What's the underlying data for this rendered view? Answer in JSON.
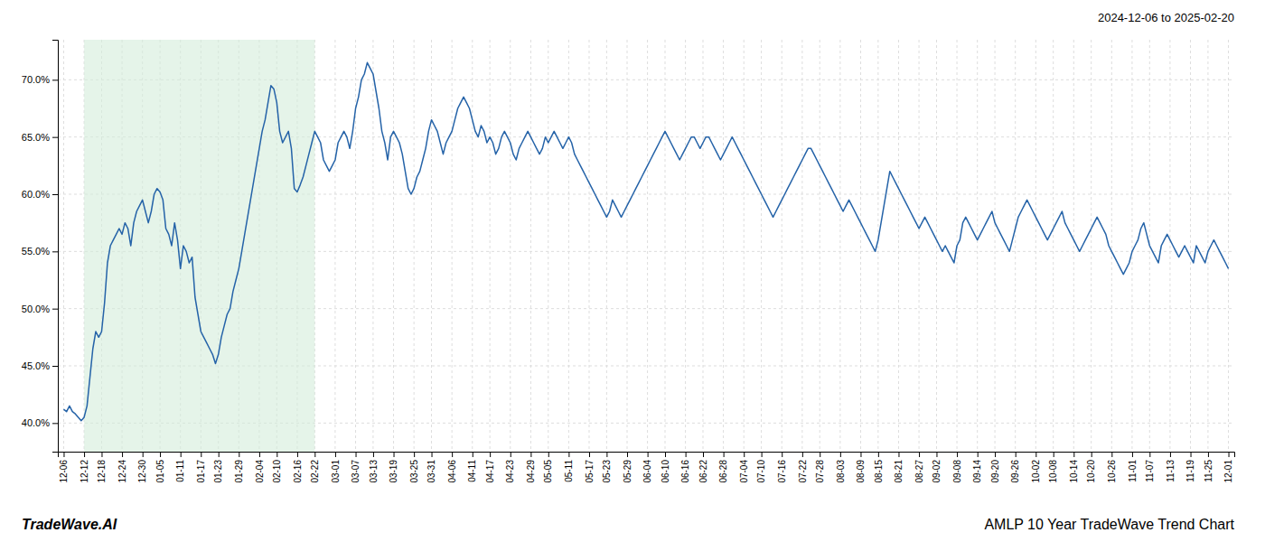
{
  "chart_data": {
    "type": "line",
    "title": "AMLP 10 Year TradeWave Trend Chart",
    "subtitle": "2024-12-06 to 2025-02-20",
    "annotations": [
      "TradeWave.AI"
    ],
    "color": "#2563a8",
    "grid": true,
    "shaded_range": {
      "start": "12-12",
      "end": "02-22",
      "color": "#d4edda"
    },
    "ylim": [
      37.5,
      73.5
    ],
    "yticks": [
      {
        "value": 40.0,
        "label": "40.0%"
      },
      {
        "value": 45.0,
        "label": "45.0%"
      },
      {
        "value": 50.0,
        "label": "50.0%"
      },
      {
        "value": 55.0,
        "label": "55.0%"
      },
      {
        "value": 60.0,
        "label": "60.0%"
      },
      {
        "value": 65.0,
        "label": "65.0%"
      },
      {
        "value": 70.0,
        "label": "70.0%"
      }
    ],
    "categories": [
      "12-06",
      null,
      null,
      null,
      null,
      null,
      null,
      "12-12",
      null,
      null,
      null,
      null,
      null,
      "12-18",
      null,
      null,
      null,
      null,
      null,
      null,
      "12-24",
      null,
      null,
      null,
      null,
      null,
      null,
      "12-30",
      null,
      null,
      null,
      null,
      null,
      "01-05",
      null,
      null,
      null,
      null,
      null,
      null,
      "01-11",
      null,
      null,
      null,
      null,
      null,
      null,
      "01-17",
      null,
      null,
      null,
      null,
      null,
      "01-23",
      null,
      null,
      null,
      null,
      null,
      null,
      "01-29",
      null,
      null,
      null,
      null,
      null,
      null,
      "02-04",
      null,
      null,
      null,
      null,
      null,
      "02-10",
      null,
      null,
      null,
      null,
      null,
      null,
      "02-16",
      null,
      null,
      null,
      null,
      null,
      "02-22",
      null,
      null,
      null,
      null,
      null,
      null,
      "03-01",
      null,
      null,
      null,
      null,
      null,
      null,
      "03-07",
      null,
      null,
      null,
      null,
      null,
      "03-13",
      null,
      null,
      null,
      null,
      null,
      null,
      "03-19",
      null,
      null,
      null,
      null,
      null,
      null,
      "03-25",
      null,
      null,
      null,
      null,
      null,
      "03-31",
      null,
      null,
      null,
      null,
      null,
      null,
      "04-06",
      null,
      null,
      null,
      null,
      null,
      null,
      "04-11",
      null,
      null,
      null,
      null,
      null,
      "04-17",
      null,
      null,
      null,
      null,
      null,
      null,
      "04-23",
      null,
      null,
      null,
      null,
      null,
      null,
      "04-29",
      null,
      null,
      null,
      null,
      null,
      "05-05",
      null,
      null,
      null,
      null,
      null,
      null,
      "05-11",
      null,
      null,
      null,
      null,
      null,
      null,
      "05-17",
      null,
      null,
      null,
      null,
      null,
      "05-23",
      null,
      null,
      null,
      null,
      null,
      null,
      "05-29",
      null,
      null,
      null,
      null,
      null,
      null,
      "06-04",
      null,
      null,
      null,
      null,
      null,
      "06-10",
      null,
      null,
      null,
      null,
      null,
      null,
      "06-16",
      null,
      null,
      null,
      null,
      null,
      "06-22",
      null,
      null,
      null,
      null,
      null,
      null,
      "06-28",
      null,
      null,
      null,
      null,
      null,
      null,
      "07-04",
      null,
      null,
      null,
      null,
      null,
      "07-10",
      null,
      null,
      null,
      null,
      null,
      null,
      "07-16",
      null,
      null,
      null,
      null,
      null,
      null,
      "07-22",
      null,
      null,
      null,
      null,
      null,
      "07-28",
      null,
      null,
      null,
      null,
      null,
      null,
      "08-03",
      null,
      null,
      null,
      null,
      null,
      null,
      "08-09",
      null,
      null,
      null,
      null,
      null,
      "08-15",
      null,
      null,
      null,
      null,
      null,
      null,
      "08-21",
      null,
      null,
      null,
      null,
      null,
      null,
      "08-27",
      null,
      null,
      null,
      null,
      null,
      "09-02",
      null,
      null,
      null,
      null,
      null,
      null,
      "09-08",
      null,
      null,
      null,
      null,
      null,
      null,
      "09-14",
      null,
      null,
      null,
      null,
      null,
      "09-20",
      null,
      null,
      null,
      null,
      null,
      null,
      "09-26",
      null,
      null,
      null,
      null,
      null,
      null,
      "10-02",
      null,
      null,
      null,
      null,
      null,
      "10-08",
      null,
      null,
      null,
      null,
      null,
      null,
      "10-14",
      null,
      null,
      null,
      null,
      null,
      "10-20",
      null,
      null,
      null,
      null,
      null,
      null,
      "10-26",
      null,
      null,
      null,
      null,
      null,
      null,
      "11-01",
      null,
      null,
      null,
      null,
      null,
      "11-07",
      null,
      null,
      null,
      null,
      null,
      null,
      "11-13",
      null,
      null,
      null,
      null,
      null,
      null,
      "11-19",
      null,
      null,
      null,
      null,
      null,
      "11-25",
      null,
      null,
      null,
      null,
      null,
      null,
      "12-01"
    ],
    "values": [
      41.2,
      41.0,
      41.5,
      41.0,
      40.8,
      40.5,
      40.2,
      40.5,
      41.5,
      44.0,
      46.5,
      48.0,
      47.5,
      48.0,
      50.5,
      54.0,
      55.5,
      56.0,
      56.5,
      57.0,
      56.5,
      57.5,
      57.0,
      55.5,
      57.5,
      58.5,
      59.0,
      59.5,
      58.5,
      57.5,
      58.5,
      60.0,
      60.5,
      60.2,
      59.5,
      57.0,
      56.5,
      55.5,
      57.5,
      56.0,
      53.5,
      55.5,
      55.0,
      54.0,
      54.5,
      51.0,
      49.5,
      48.0,
      47.5,
      47.0,
      46.5,
      46.0,
      45.2,
      46.0,
      47.5,
      48.5,
      49.5,
      50.0,
      51.5,
      52.5,
      53.5,
      55.0,
      56.5,
      58.0,
      59.5,
      61.0,
      62.5,
      64.0,
      65.5,
      66.5,
      68.0,
      69.5,
      69.2,
      68.0,
      65.5,
      64.5,
      65.0,
      65.5,
      64.0,
      60.5,
      60.2,
      60.8,
      61.5,
      62.5,
      63.5,
      64.5,
      65.5,
      65.0,
      64.5,
      63.0,
      62.5,
      62.0,
      62.5,
      63.0,
      64.5,
      65.0,
      65.5,
      65.0,
      64.0,
      65.5,
      67.5,
      68.5,
      70.0,
      70.5,
      71.5,
      71.0,
      70.5,
      69.0,
      67.5,
      65.5,
      64.5,
      63.0,
      65.0,
      65.5,
      65.0,
      64.5,
      63.5,
      62.0,
      60.5,
      60.0,
      60.5,
      61.5,
      62.0,
      63.0,
      64.0,
      65.5,
      66.5,
      66.0,
      65.5,
      64.5,
      63.5,
      64.5,
      65.0,
      65.5,
      66.5,
      67.5,
      68.0,
      68.5,
      68.0,
      67.5,
      66.5,
      65.5,
      65.0,
      66.0,
      65.5,
      64.5,
      65.0,
      64.5,
      63.5,
      64.0,
      65.0,
      65.5,
      65.0,
      64.5,
      63.5,
      63.0,
      64.0,
      64.5,
      65.0,
      65.5,
      65.0,
      64.5,
      64.0,
      63.5,
      64.0,
      65.0,
      64.5,
      65.0,
      65.5,
      65.0,
      64.5,
      64.0,
      64.5,
      65.0,
      64.5,
      63.5,
      63.0,
      62.5,
      62.0,
      61.5,
      61.0,
      60.5,
      60.0,
      59.5,
      59.0,
      58.5,
      58.0,
      58.5,
      59.5,
      59.0,
      58.5,
      58.0,
      58.5,
      59.0,
      59.5,
      60.0,
      60.5,
      61.0,
      61.5,
      62.0,
      62.5,
      63.0,
      63.5,
      64.0,
      64.5,
      65.0,
      65.5,
      65.0,
      64.5,
      64.0,
      63.5,
      63.0,
      63.5,
      64.0,
      64.5,
      65.0,
      65.0,
      64.5,
      64.0,
      64.5,
      65.0,
      65.0,
      64.5,
      64.0,
      63.5,
      63.0,
      63.5,
      64.0,
      64.5,
      65.0,
      64.5,
      64.0,
      63.5,
      63.0,
      62.5,
      62.0,
      61.5,
      61.0,
      60.5,
      60.0,
      59.5,
      59.0,
      58.5,
      58.0,
      58.5,
      59.0,
      59.5,
      60.0,
      60.5,
      61.0,
      61.5,
      62.0,
      62.5,
      63.0,
      63.5,
      64.0,
      64.0,
      63.5,
      63.0,
      62.5,
      62.0,
      61.5,
      61.0,
      60.5,
      60.0,
      59.5,
      59.0,
      58.5,
      59.0,
      59.5,
      59.0,
      58.5,
      58.0,
      57.5,
      57.0,
      56.5,
      56.0,
      55.5,
      55.0,
      56.0,
      57.5,
      59.0,
      60.5,
      62.0,
      61.5,
      61.0,
      60.5,
      60.0,
      59.5,
      59.0,
      58.5,
      58.0,
      57.5,
      57.0,
      57.5,
      58.0,
      57.5,
      57.0,
      56.5,
      56.0,
      55.5,
      55.0,
      55.5,
      55.0,
      54.5,
      54.0,
      55.5,
      56.0,
      57.5,
      58.0,
      57.5,
      57.0,
      56.5,
      56.0,
      56.5,
      57.0,
      57.5,
      58.0,
      58.5,
      57.5,
      57.0,
      56.5,
      56.0,
      55.5,
      55.0,
      56.0,
      57.0,
      58.0,
      58.5,
      59.0,
      59.5,
      59.0,
      58.5,
      58.0,
      57.5,
      57.0,
      56.5,
      56.0,
      56.5,
      57.0,
      57.5,
      58.0,
      58.5,
      57.5,
      57.0,
      56.5,
      56.0,
      55.5,
      55.0,
      55.5,
      56.0,
      56.5,
      57.0,
      57.5,
      58.0,
      57.5,
      57.0,
      56.5,
      55.5,
      55.0,
      54.5,
      54.0,
      53.5,
      53.0,
      53.5,
      54.0,
      55.0,
      55.5,
      56.0,
      57.0,
      57.5,
      56.5,
      55.5,
      55.0,
      54.5,
      54.0,
      55.5,
      56.0,
      56.5,
      56.0,
      55.5,
      55.0,
      54.5,
      55.0,
      55.5,
      55.0,
      54.5,
      54.0,
      55.5,
      55.0,
      54.5,
      54.0,
      55.0,
      55.5,
      56.0,
      55.5,
      55.0,
      54.5,
      54.0,
      53.5
    ]
  }
}
